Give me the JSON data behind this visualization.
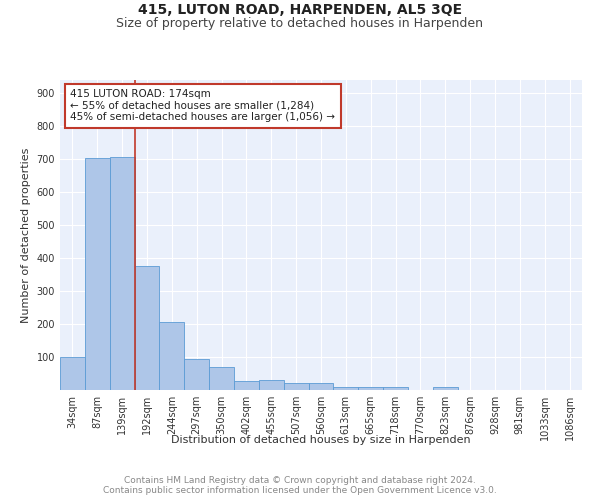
{
  "title": "415, LUTON ROAD, HARPENDEN, AL5 3QE",
  "subtitle": "Size of property relative to detached houses in Harpenden",
  "xlabel": "Distribution of detached houses by size in Harpenden",
  "ylabel": "Number of detached properties",
  "bar_labels": [
    "34sqm",
    "87sqm",
    "139sqm",
    "192sqm",
    "244sqm",
    "297sqm",
    "350sqm",
    "402sqm",
    "455sqm",
    "507sqm",
    "560sqm",
    "613sqm",
    "665sqm",
    "718sqm",
    "770sqm",
    "823sqm",
    "876sqm",
    "928sqm",
    "981sqm",
    "1033sqm",
    "1086sqm"
  ],
  "bar_values": [
    100,
    703,
    706,
    375,
    205,
    95,
    70,
    28,
    30,
    20,
    22,
    10,
    8,
    8,
    0,
    8,
    0,
    0,
    0,
    0,
    0
  ],
  "bar_color": "#aec6e8",
  "bar_edge_color": "#5b9bd5",
  "bg_color": "#eaf0fb",
  "grid_color": "#ffffff",
  "vline_color": "#c0392b",
  "annotation_text": "415 LUTON ROAD: 174sqm\n← 55% of detached houses are smaller (1,284)\n45% of semi-detached houses are larger (1,056) →",
  "annotation_box_color": "#c0392b",
  "ylim": [
    0,
    940
  ],
  "yticks": [
    0,
    100,
    200,
    300,
    400,
    500,
    600,
    700,
    800,
    900
  ],
  "footer": "Contains HM Land Registry data © Crown copyright and database right 2024.\nContains public sector information licensed under the Open Government Licence v3.0.",
  "title_fontsize": 10,
  "subtitle_fontsize": 9,
  "label_fontsize": 8,
  "tick_fontsize": 7,
  "footer_fontsize": 6.5,
  "annot_fontsize": 7.5
}
